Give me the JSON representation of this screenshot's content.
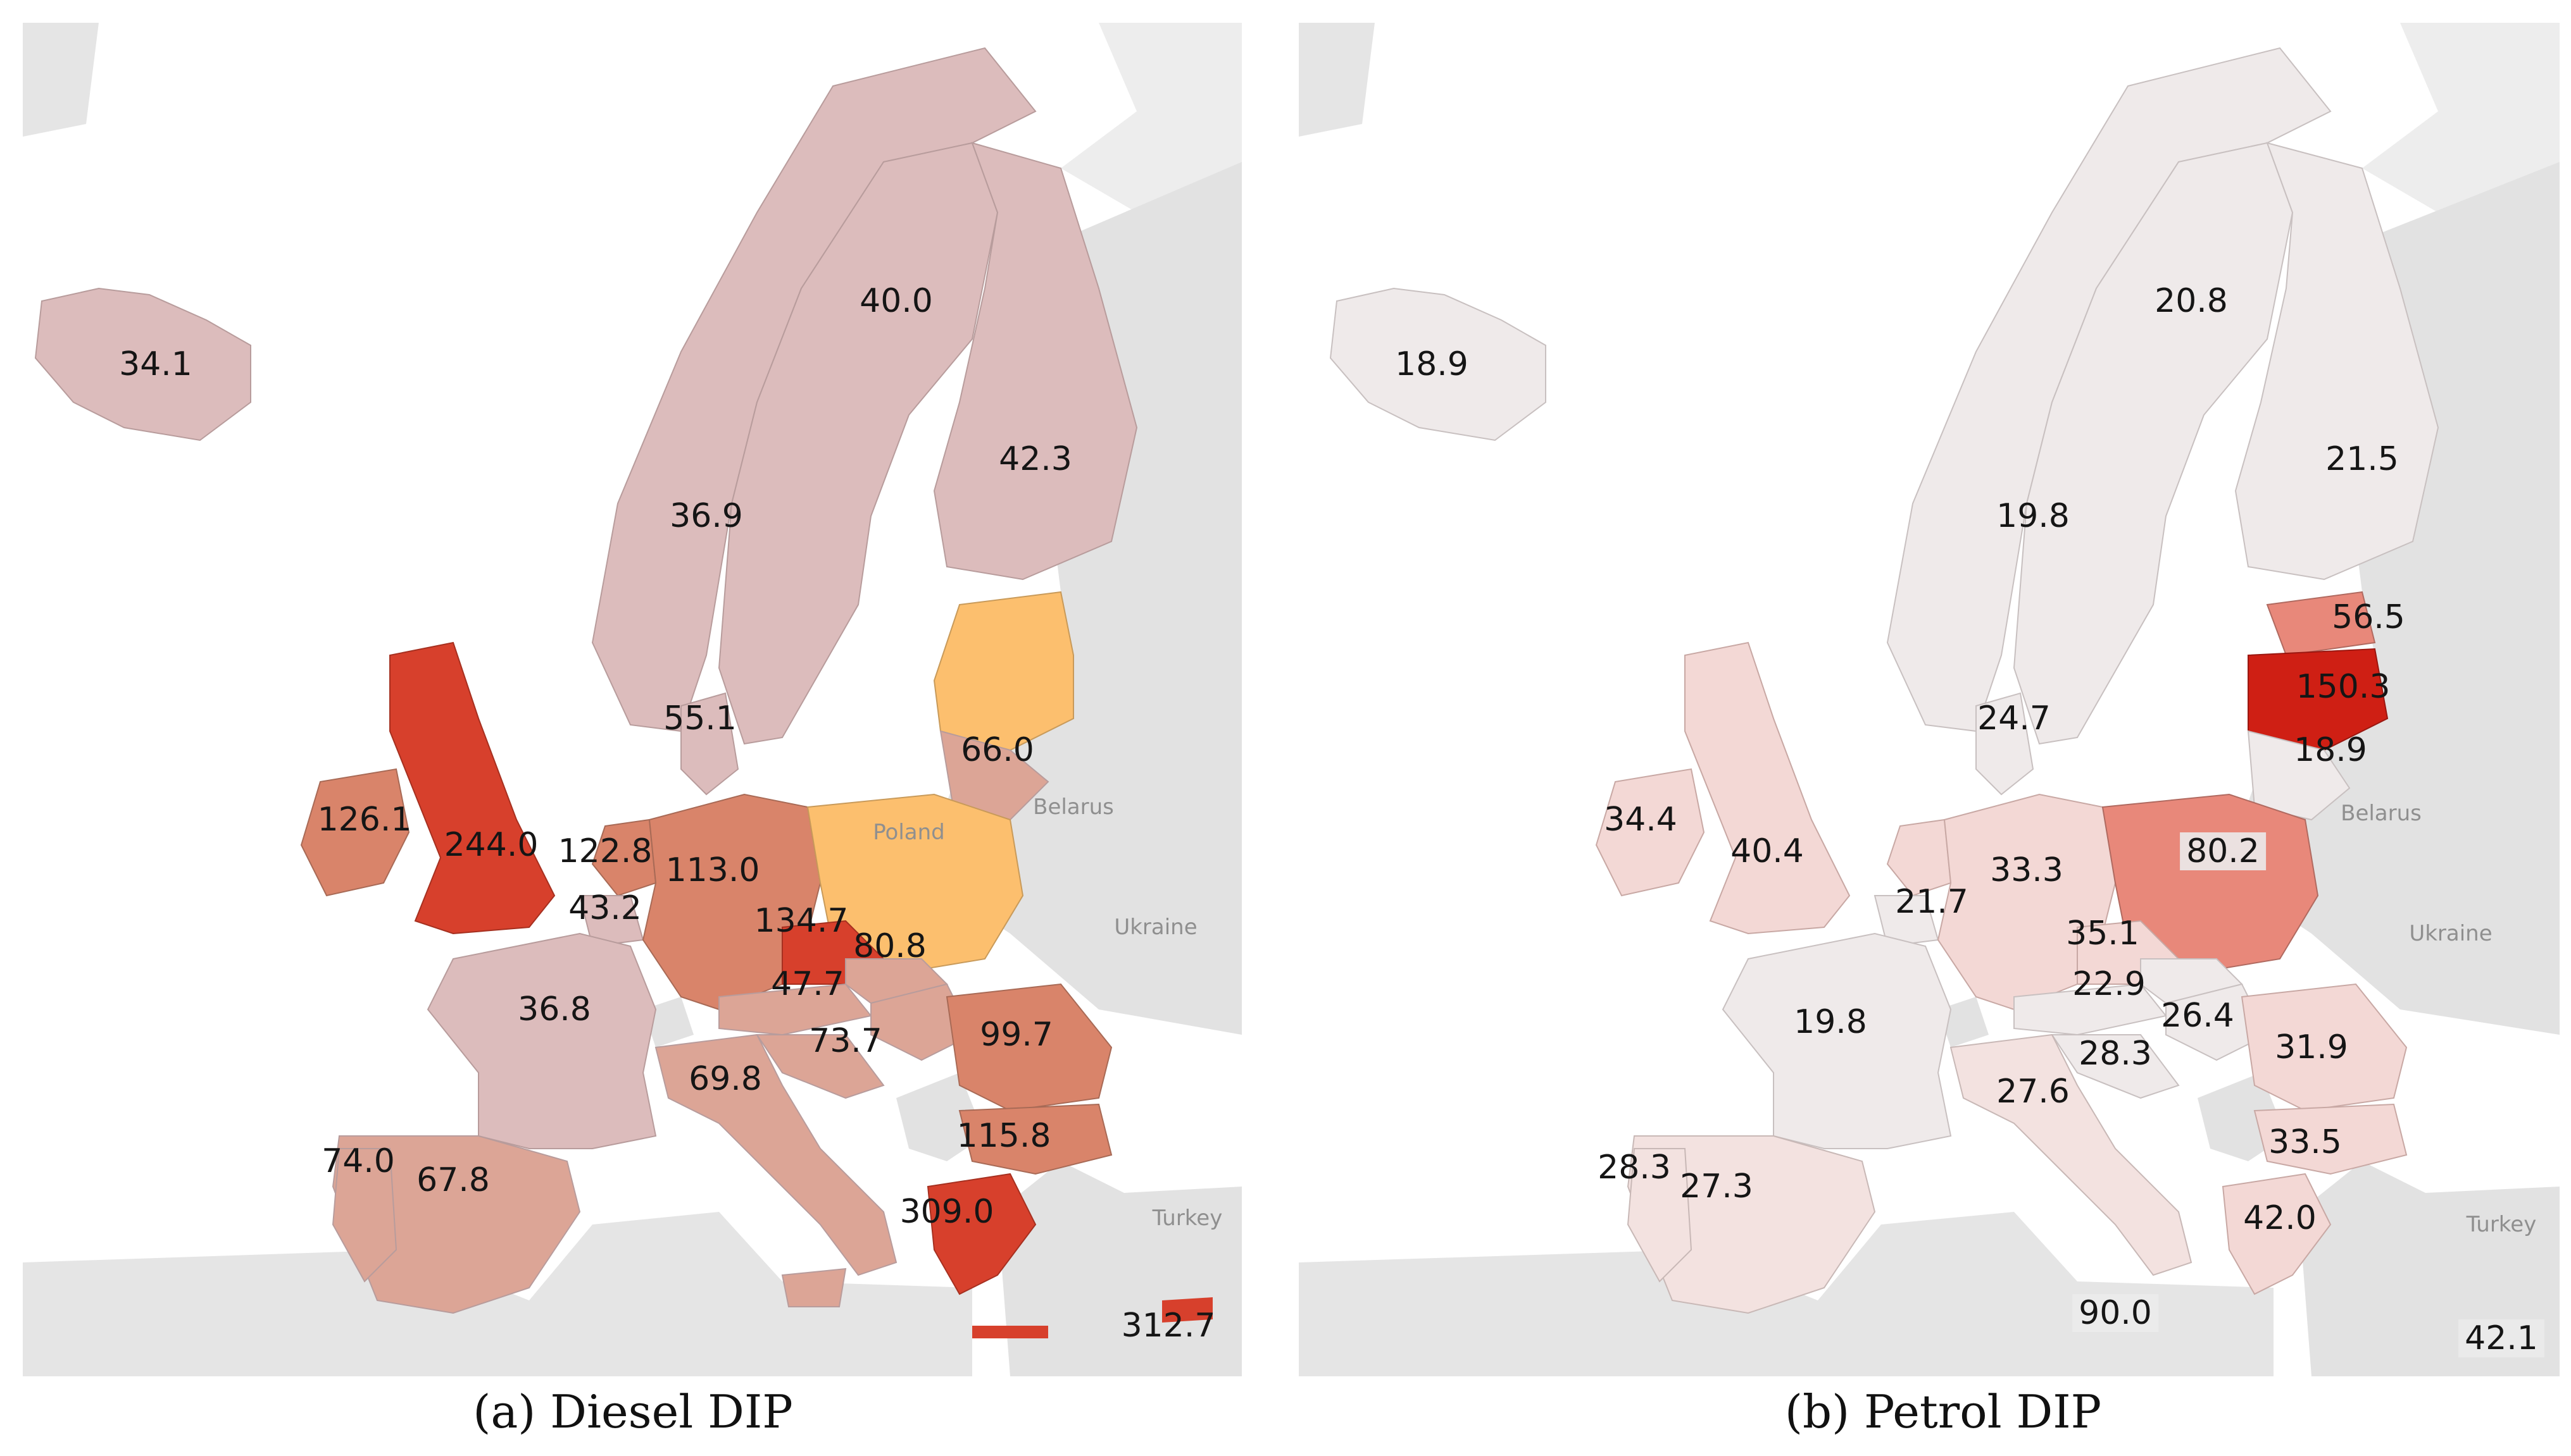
{
  "panels": [
    {
      "id": "diesel",
      "caption": "(a) Diesel DIP",
      "country_labels": [
        {
          "name": "Belarus"
        },
        {
          "name": "Ukraine"
        },
        {
          "name": "Turkey"
        },
        {
          "name": "Poland"
        }
      ],
      "values": [
        {
          "country": "Iceland",
          "value": "34.1"
        },
        {
          "country": "Sweden",
          "value": "40.0"
        },
        {
          "country": "Norway",
          "value": "36.9"
        },
        {
          "country": "Finland",
          "value": "42.3"
        },
        {
          "country": "Denmark",
          "value": "55.1"
        },
        {
          "country": "Lithuania",
          "value": "66.0"
        },
        {
          "country": "Ireland",
          "value": "126.1"
        },
        {
          "country": "United Kingdom",
          "value": "244.0"
        },
        {
          "country": "Netherlands",
          "value": "122.8"
        },
        {
          "country": "Belgium",
          "value": "43.2"
        },
        {
          "country": "Germany",
          "value": "113.0"
        },
        {
          "country": "Czechia",
          "value": "134.7"
        },
        {
          "country": "Slovakia",
          "value": "80.8"
        },
        {
          "country": "Austria",
          "value": "47.7"
        },
        {
          "country": "France",
          "value": "36.8"
        },
        {
          "country": "Croatia",
          "value": "73.7"
        },
        {
          "country": "Romania",
          "value": "99.7"
        },
        {
          "country": "Italy",
          "value": "69.8"
        },
        {
          "country": "Bulgaria",
          "value": "115.8"
        },
        {
          "country": "Portugal",
          "value": "74.0"
        },
        {
          "country": "Spain",
          "value": "67.8"
        },
        {
          "country": "Greece",
          "value": "309.0"
        },
        {
          "country": "Cyprus",
          "value": "312.7"
        }
      ]
    },
    {
      "id": "petrol",
      "caption": "(b) Petrol DIP",
      "country_labels": [
        {
          "name": "Belarus"
        },
        {
          "name": "Ukraine"
        },
        {
          "name": "Turkey"
        }
      ],
      "values": [
        {
          "country": "Iceland",
          "value": "18.9"
        },
        {
          "country": "Sweden",
          "value": "20.8"
        },
        {
          "country": "Norway",
          "value": "19.8"
        },
        {
          "country": "Finland",
          "value": "21.5"
        },
        {
          "country": "Estonia",
          "value": "56.5"
        },
        {
          "country": "Latvia",
          "value": "150.3"
        },
        {
          "country": "Denmark",
          "value": "24.7"
        },
        {
          "country": "Lithuania",
          "value": "18.9"
        },
        {
          "country": "Ireland",
          "value": "34.4"
        },
        {
          "country": "United Kingdom",
          "value": "40.4"
        },
        {
          "country": "Germany",
          "value": "33.3"
        },
        {
          "country": "Poland",
          "value": "80.2"
        },
        {
          "country": "Belgium",
          "value": "21.7"
        },
        {
          "country": "Czechia",
          "value": "35.1"
        },
        {
          "country": "Austria",
          "value": "22.9"
        },
        {
          "country": "Hungary",
          "value": "26.4"
        },
        {
          "country": "France",
          "value": "19.8"
        },
        {
          "country": "Slovenia",
          "value": "28.3"
        },
        {
          "country": "Romania",
          "value": "31.9"
        },
        {
          "country": "Italy",
          "value": "27.6"
        },
        {
          "country": "Bulgaria",
          "value": "33.5"
        },
        {
          "country": "Portugal",
          "value": "28.3"
        },
        {
          "country": "Spain",
          "value": "27.3"
        },
        {
          "country": "Greece",
          "value": "42.0"
        },
        {
          "country": "Malta",
          "value": "90.0"
        },
        {
          "country": "Cyprus",
          "value": "42.1"
        }
      ]
    }
  ],
  "colors": {
    "diesel_light": "#dcbcbc",
    "diesel_mid": "#dca596",
    "diesel_strong": "#d9846a",
    "diesel_dark": "#d7402c",
    "diesel_orange": "#fcbf6e",
    "petrol_light": "#efeaea",
    "petrol_pale": "#f3d8d5",
    "petrol_mid": "#e8887a",
    "petrol_dark": "#cf1f14",
    "ocean": "#ffffff",
    "nondata_land": "#e2e2e2"
  }
}
